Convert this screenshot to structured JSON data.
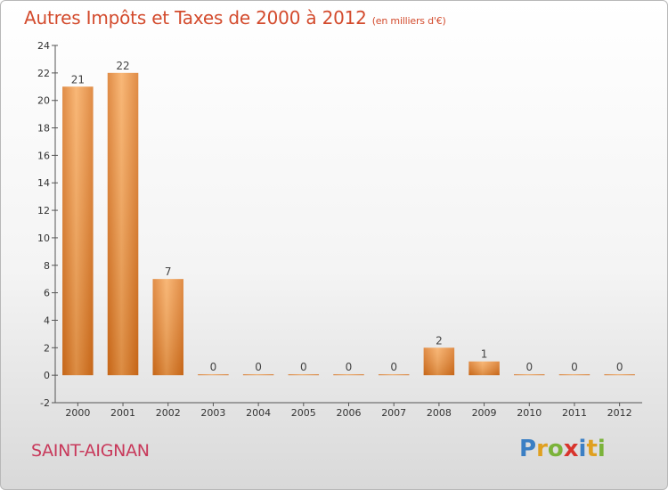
{
  "header": {
    "title": "Autres Impôts et Taxes de 2000 à 2012",
    "unit_note": "(en milliers d'€)"
  },
  "footer": {
    "commune": "SAINT-AIGNAN",
    "logo_letters": [
      {
        "ch": "P",
        "color": "#3b7fc4"
      },
      {
        "ch": "r",
        "color": "#e0a020"
      },
      {
        "ch": "o",
        "color": "#7bb33a"
      },
      {
        "ch": "x",
        "color": "#d8342c"
      },
      {
        "ch": "i",
        "color": "#3b7fc4"
      },
      {
        "ch": "t",
        "color": "#e0a020"
      },
      {
        "ch": "i",
        "color": "#7bb33a"
      }
    ]
  },
  "chart_data": {
    "type": "bar",
    "title": "Autres Impôts et Taxes de 2000 à 2012",
    "subtitle": "(en milliers d'€)",
    "categories": [
      "2000",
      "2001",
      "2002",
      "2003",
      "2004",
      "2005",
      "2006",
      "2007",
      "2008",
      "2009",
      "2010",
      "2011",
      "2012"
    ],
    "values": [
      21,
      22,
      7,
      0,
      0,
      0,
      0,
      0,
      2,
      1,
      0,
      0,
      0
    ],
    "ylim": [
      -2,
      24
    ],
    "yticks": [
      -2,
      0,
      2,
      4,
      6,
      8,
      10,
      12,
      14,
      16,
      18,
      20,
      22,
      24
    ],
    "grid": false,
    "legend": "none",
    "bar_color_light": "#f7a85a",
    "bar_color_dark": "#d9731e"
  }
}
